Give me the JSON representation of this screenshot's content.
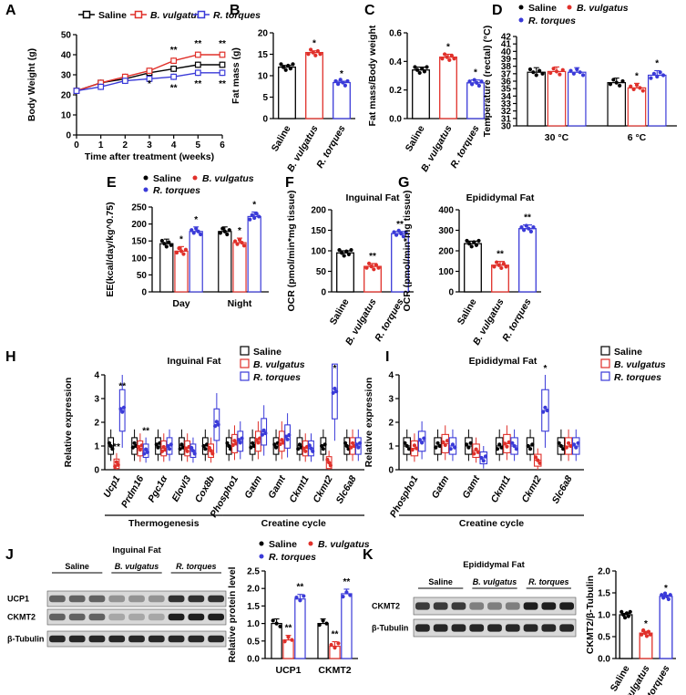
{
  "colors": {
    "saline": "#000000",
    "bv": "#e0302a",
    "rt": "#3a3ad8"
  },
  "legend": {
    "saline": "Saline",
    "bv": "B. vulgatus",
    "rt": "R. torques"
  },
  "panels": {
    "A": "A",
    "B": "B",
    "C": "C",
    "D": "D",
    "E": "E",
    "F": "F",
    "G": "G",
    "H": "H",
    "I": "I",
    "J": "J",
    "K": "K"
  },
  "chart_data": [
    {
      "id": "A",
      "type": "line",
      "xlabel": "Time after treatment (weeks)",
      "ylabel": "Body Weight (g)",
      "xlim": [
        0,
        6
      ],
      "ylim": [
        0,
        50
      ],
      "xticks": [
        "0",
        "1",
        "2",
        "3",
        "4",
        "5",
        "6"
      ],
      "yticks": [
        "0",
        "10",
        "20",
        "30",
        "40",
        "50"
      ],
      "series": [
        {
          "name": "Saline",
          "x": [
            0,
            1,
            2,
            3,
            4,
            5,
            6
          ],
          "values": [
            22,
            26,
            28,
            31,
            33,
            35,
            35
          ]
        },
        {
          "name": "B. vulgatus",
          "x": [
            0,
            1,
            2,
            3,
            4,
            5,
            6
          ],
          "values": [
            22,
            26,
            29,
            32,
            37,
            40,
            40
          ]
        },
        {
          "name": "R. torques",
          "x": [
            0,
            1,
            2,
            3,
            4,
            5,
            6
          ],
          "values": [
            22,
            24,
            27,
            28,
            29,
            31,
            31
          ]
        }
      ],
      "annotations": [
        "**",
        "**",
        "**",
        "*",
        "**",
        "**",
        "**"
      ]
    },
    {
      "id": "B",
      "type": "bar",
      "ylabel": "Fat mass (g)",
      "ylim": [
        0,
        20
      ],
      "yticks": [
        "0",
        "5",
        "10",
        "15",
        "20"
      ],
      "categories": [
        "Saline",
        "B. vulgatus",
        "R. torques"
      ],
      "values": [
        12,
        15.4,
        8.4
      ],
      "errors": [
        0.4,
        0.4,
        0.3
      ],
      "annotations": [
        "",
        "*",
        "*"
      ]
    },
    {
      "id": "C",
      "type": "bar",
      "ylabel": "Fat mass/Body weight",
      "ylim": [
        0,
        0.6
      ],
      "yticks": [
        "0.0",
        "0.2",
        "0.4",
        "0.6"
      ],
      "categories": [
        "Saline",
        "B. vulgatus",
        "R. torques"
      ],
      "values": [
        0.34,
        0.43,
        0.25
      ],
      "errors": [
        0.02,
        0.02,
        0.02
      ],
      "annotations": [
        "",
        "*",
        "*"
      ]
    },
    {
      "id": "D",
      "type": "bar",
      "ylabel": "Temperature (rectal) (°C)",
      "ylim": [
        30,
        42
      ],
      "yticks": [
        "30",
        "31",
        "32",
        "33",
        "34",
        "35",
        "36",
        "37",
        "38",
        "39",
        "40",
        "41",
        "42"
      ],
      "categories": [
        "30 °C",
        "6 °C"
      ],
      "series": [
        {
          "name": "Saline",
          "values": [
            37.2,
            35.8
          ]
        },
        {
          "name": "B. vulgatus",
          "values": [
            37.3,
            35.1
          ]
        },
        {
          "name": "R. torques",
          "values": [
            37.2,
            36.8
          ]
        }
      ],
      "annotations": [
        "",
        "",
        "",
        "",
        "*",
        "*"
      ]
    },
    {
      "id": "E",
      "type": "bar",
      "ylabel": "EE(kcal/day/kg^0.75)",
      "ylim": [
        0,
        250
      ],
      "yticks": [
        "0",
        "50",
        "100",
        "150",
        "200",
        "250"
      ],
      "categories": [
        "Day",
        "Night"
      ],
      "series": [
        {
          "name": "Saline",
          "values": [
            142,
            178
          ]
        },
        {
          "name": "B. vulgatus",
          "values": [
            120,
            145
          ]
        },
        {
          "name": "R. torques",
          "values": [
            178,
            222
          ]
        }
      ],
      "annotations": [
        "",
        "*",
        "*",
        "",
        "*",
        "*"
      ]
    },
    {
      "id": "F",
      "type": "bar",
      "title": "Inguinal Fat",
      "ylabel": "OCR (pmol/min*mg tissue)",
      "ylim": [
        0,
        200
      ],
      "yticks": [
        "0",
        "50",
        "100",
        "150",
        "200"
      ],
      "categories": [
        "Saline",
        "B. vulgatus",
        "R. torques"
      ],
      "values": [
        95,
        62,
        142
      ],
      "errors": [
        5,
        7,
        5
      ],
      "annotations": [
        "",
        "**",
        "**"
      ]
    },
    {
      "id": "G",
      "type": "bar",
      "title": "Epididymal Fat",
      "ylabel": "OCR (pmol/min*mg tissue)",
      "ylim": [
        0,
        400
      ],
      "yticks": [
        "0",
        "100",
        "200",
        "300",
        "400"
      ],
      "categories": [
        "Saline",
        "B. vulgatus",
        "R. torques"
      ],
      "values": [
        235,
        130,
        308
      ],
      "errors": [
        12,
        18,
        18
      ],
      "annotations": [
        "",
        "**",
        "**"
      ]
    },
    {
      "id": "H",
      "type": "box",
      "title": "Inguinal Fat",
      "ylabel": "Relative expression",
      "ylim": [
        0,
        4
      ],
      "yticks": [
        "0",
        "1",
        "2",
        "3",
        "4"
      ],
      "categories": [
        "Ucp1",
        "Prdm16",
        "Pgc1α",
        "Elovl3",
        "Cox8b",
        "Phospho1",
        "Gatm",
        "Gamt",
        "Ckmt1",
        "Ckmt2",
        "Slc6a8"
      ],
      "series": [
        {
          "name": "Saline",
          "values": [
            1.0,
            1.0,
            1.0,
            1.0,
            1.0,
            1.0,
            1.0,
            1.0,
            1.0,
            1.0,
            1.0
          ]
        },
        {
          "name": "B. vulgatus",
          "values": [
            0.2,
            0.9,
            0.9,
            0.9,
            0.8,
            1.1,
            1.2,
            1.2,
            0.9,
            0.3,
            1.0
          ]
        },
        {
          "name": "R. torques",
          "values": [
            2.5,
            0.8,
            1.0,
            0.8,
            1.9,
            1.2,
            1.6,
            1.4,
            0.9,
            3.3,
            1.0
          ]
        }
      ],
      "annotations": [
        "**",
        "**",
        "",
        "",
        "",
        "",
        "",
        "",
        "",
        "*",
        ""
      ],
      "groups": [
        "Thermogenesis",
        "Creatine cycle"
      ]
    },
    {
      "id": "I",
      "type": "box",
      "title": "Epididymal Fat",
      "ylabel": "Relative expression",
      "ylim": [
        0,
        4
      ],
      "yticks": [
        "0",
        "1",
        "2",
        "3",
        "4"
      ],
      "categories": [
        "Phospho1",
        "Gatm",
        "Gamt",
        "Ckmt1",
        "Ckmt2",
        "Slc6a8"
      ],
      "series": [
        {
          "name": "Saline",
          "values": [
            1.0,
            1.0,
            1.0,
            1.0,
            1.0,
            1.0
          ]
        },
        {
          "name": "B. vulgatus",
          "values": [
            0.9,
            1.1,
            0.8,
            1.1,
            0.4,
            1.0
          ]
        },
        {
          "name": "R. torques",
          "values": [
            1.2,
            1.0,
            0.5,
            1.0,
            2.5,
            1.0
          ]
        }
      ],
      "annotations": [
        "",
        "",
        "",
        "",
        "*",
        ""
      ],
      "groups": [
        "Creatine cycle"
      ]
    },
    {
      "id": "J",
      "type": "bar",
      "ylabel": "Relative protein level",
      "ylim": [
        0,
        2.5
      ],
      "yticks": [
        "0.0",
        "0.5",
        "1.0",
        "1.5",
        "2.0",
        "2.5"
      ],
      "categories": [
        "UCP1",
        "CKMT2"
      ],
      "series": [
        {
          "name": "Saline",
          "values": [
            1.0,
            1.0
          ]
        },
        {
          "name": "B. vulgatus",
          "values": [
            0.53,
            0.35
          ]
        },
        {
          "name": "R. torques",
          "values": [
            1.7,
            1.85
          ]
        }
      ],
      "annotations": [
        "",
        "**",
        "**",
        "",
        "**",
        "**"
      ]
    },
    {
      "id": "K",
      "type": "bar",
      "ylabel": "CKMT2/β-Tubulin",
      "ylim": [
        0,
        2.0
      ],
      "yticks": [
        "0.0",
        "0.5",
        "1.0",
        "1.5",
        "2.0"
      ],
      "categories": [
        "Saline",
        "B. vulgatus",
        "R. torques"
      ],
      "values": [
        1.0,
        0.58,
        1.42
      ],
      "errors": [
        0.03,
        0.04,
        0.02
      ],
      "annotations": [
        "",
        "*",
        "*"
      ]
    }
  ],
  "blots": {
    "J": {
      "title": "Inguinal Fat",
      "groups": [
        "Saline",
        "B. vulgatus",
        "R. torques"
      ],
      "rows": [
        "UCP1",
        "CKMT2",
        "β-Tubulin"
      ]
    },
    "K": {
      "title": "Epididymal Fat",
      "groups": [
        "Saline",
        "B. vulgatus",
        "R. torques"
      ],
      "rows": [
        "CKMT2",
        "β-Tubulin"
      ]
    }
  }
}
